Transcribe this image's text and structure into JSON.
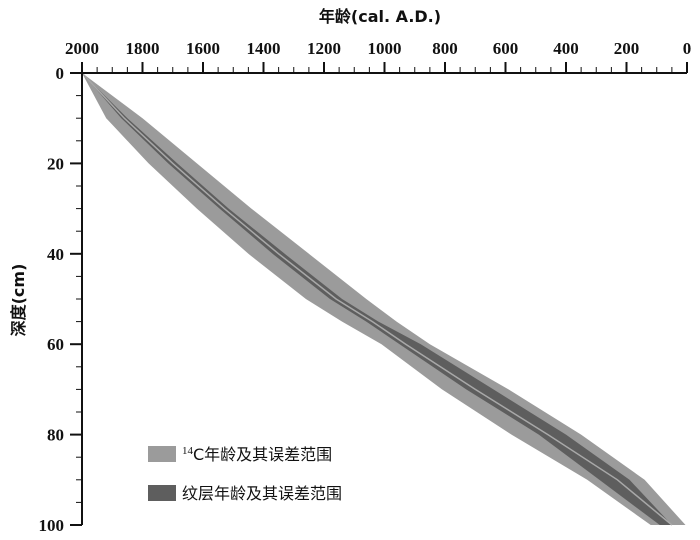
{
  "chart_data": {
    "type": "area",
    "x_axis": {
      "label": "年龄(cal. A.D.)",
      "position": "top",
      "reversed": true,
      "range": [
        2000,
        0
      ],
      "ticks": [
        2000,
        1800,
        1600,
        1400,
        1200,
        1000,
        800,
        600,
        400,
        200,
        0
      ]
    },
    "y_axis": {
      "label": "深度(cm)",
      "reversed": true,
      "range": [
        0,
        100
      ],
      "ticks": [
        0,
        20,
        40,
        60,
        80,
        100
      ]
    },
    "grid": false,
    "legend": {
      "placement": "bottom-left",
      "entries": [
        {
          "sup": "14",
          "text": "C年龄及其误差范围",
          "color": "#9b9b9b"
        },
        {
          "sup": "",
          "text": "纹层年龄及其误差范围",
          "color": "#5e5e5e"
        }
      ]
    },
    "series": [
      {
        "name": "14C年龄及其误差范围",
        "color": "#9b9b9b",
        "depth": [
          0,
          10,
          20,
          30,
          40,
          50,
          55,
          60,
          70,
          80,
          90,
          100
        ],
        "center": [
          2000,
          1860,
          1700,
          1530,
          1350,
          1160,
          1040,
          930,
          700,
          460,
          230,
          50
        ],
        "young": [
          2000,
          1800,
          1620,
          1440,
          1250,
          1060,
          960,
          850,
          590,
          350,
          140,
          5
        ],
        "old": [
          2000,
          1920,
          1780,
          1620,
          1450,
          1260,
          1140,
          1010,
          810,
          580,
          330,
          120
        ]
      },
      {
        "name": "纹层年龄及其误差范围",
        "color": "#5e5e5e",
        "depth": [
          0,
          10,
          20,
          30,
          40,
          50,
          55,
          60,
          70,
          80,
          90,
          100
        ],
        "center": [
          2000,
          1860,
          1700,
          1530,
          1350,
          1160,
          1040,
          920,
          690,
          450,
          240,
          70
        ],
        "young": [
          2000,
          1850,
          1685,
          1515,
          1330,
          1140,
          1020,
          880,
          640,
          400,
          190,
          50
        ],
        "old": [
          2000,
          1870,
          1715,
          1545,
          1370,
          1180,
          1060,
          950,
          730,
          490,
          290,
          90
        ]
      }
    ]
  }
}
